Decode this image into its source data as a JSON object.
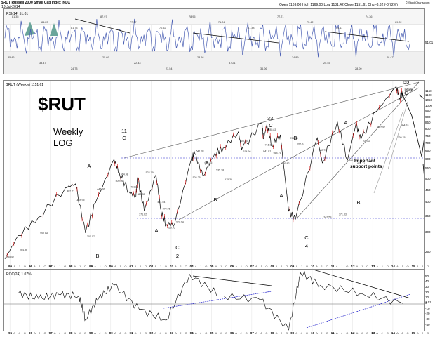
{
  "header": {
    "symbol_line": "$RUT Russell 2000 Small Cap Index INDX",
    "date_line": "18-Jul-2014",
    "quote_line": "Open 1169.00  High 1169.00  Low 1131.42  Close 1151.61  Chg -8.32 (-0.72%)",
    "watermark": "© StockCharts.com"
  },
  "rsi_panel": {
    "label": "RSI(14) 51.01",
    "current": "51.01",
    "peak_labels": [
      "81.35",
      "84.23",
      "81.73",
      "87.97",
      "77.97",
      "70.52",
      "78.95",
      "71.24",
      "67.38",
      "77.71",
      "75.42",
      "74.11",
      "74.36",
      "69.22"
    ],
    "trough_labels": [
      "35.46",
      "33.47",
      "24.73",
      "25.69",
      "22.43",
      "23.54",
      "28.98",
      "37.21",
      "36.06",
      "24.89",
      "25.45",
      "28.00",
      "29.47"
    ]
  },
  "price_panel": {
    "label": "$RUT (Weekly) 1151.61",
    "title": "$RUT",
    "subtitle_1": "Weekly",
    "subtitle_2": "LOG",
    "current_value": "1151.61",
    "support_note_1": "Important",
    "support_note_2": "support points",
    "price_labels": [
      "235.42",
      "264.96",
      "293.84",
      "462.21",
      "401.98",
      "301.07",
      "447.06",
      "509.06",
      "514.98",
      "481.22",
      "425.35",
      "371.62",
      "523.79",
      "417.54",
      "370.96",
      "326.95",
      "327.04",
      "526.25",
      "641.38",
      "606.45",
      "535.38",
      "515.38",
      "705.15",
      "674.66",
      "641.61",
      "716.96",
      "785.83",
      "664.76",
      "569.82",
      "764.38",
      "689.33",
      "682.79",
      "342.59",
      "371.33",
      "586.00",
      "601.71",
      "705.82",
      "847.92",
      "730.76",
      "864.74",
      "1151.61",
      "1208.15"
    ],
    "wave_labels": [
      {
        "text": "11",
        "pos": "top"
      },
      {
        "text": "C",
        "pos": "top"
      },
      {
        "text": "A",
        "pos": "top"
      },
      {
        "text": "B",
        "pos": "bottom"
      },
      {
        "text": "A",
        "pos": "bottom"
      },
      {
        "text": "C",
        "pos": "bottom"
      },
      {
        "text": "2",
        "pos": "bottom"
      },
      {
        "text": "A",
        "pos": "top"
      },
      {
        "text": "B",
        "pos": "bottom"
      },
      {
        "text": "33",
        "pos": "top"
      },
      {
        "text": "C",
        "pos": "top"
      },
      {
        "text": "A",
        "pos": "bottom"
      },
      {
        "text": "B",
        "pos": "top"
      },
      {
        "text": "C",
        "pos": "bottom"
      },
      {
        "text": "4",
        "pos": "bottom"
      },
      {
        "text": "A",
        "pos": "top"
      },
      {
        "text": "B",
        "pos": "bottom"
      },
      {
        "text": "55",
        "pos": "top"
      },
      {
        "text": "C",
        "pos": "top"
      }
    ],
    "y_ticks": [
      "1150",
      "1100",
      "1050",
      "1000",
      "950",
      "900",
      "850",
      "800",
      "750",
      "700",
      "650",
      "600",
      "550",
      "500",
      "450",
      "400",
      "350",
      "300",
      "250"
    ]
  },
  "roc_panel": {
    "label": "ROC(24) 1.07%",
    "current": "1.07",
    "y_ticks": [
      "60",
      "50",
      "40",
      "30",
      "20",
      "10",
      "0",
      "-10",
      "-20",
      "-30",
      "-40",
      "-50"
    ]
  },
  "x_axis": {
    "years": [
      "95",
      "96",
      "97",
      "98",
      "99",
      "00",
      "01",
      "02",
      "03",
      "04",
      "05",
      "06",
      "07",
      "08",
      "09",
      "10",
      "11",
      "12",
      "13",
      "14",
      "15"
    ],
    "month_letters": [
      "A",
      "J",
      "O"
    ]
  },
  "chart_data": {
    "type": "line",
    "title": "$RUT",
    "subtitle": "Weekly LOG",
    "scale": "log",
    "series": [
      {
        "name": "$RUT (Weekly)",
        "x": [
          "1994-10",
          "1995-06",
          "1996-06",
          "1997-10",
          "1998-04",
          "1998-10",
          "1999-04",
          "2000-03",
          "2000-06",
          "2000-12",
          "2001-04",
          "2001-05",
          "2001-09",
          "2002-04",
          "2002-07",
          "2002-10",
          "2003-03",
          "2004-01",
          "2004-03",
          "2004-08",
          "2005-03",
          "2005-08",
          "2006-05",
          "2006-07",
          "2007-07",
          "2007-08",
          "2007-10",
          "2008-01",
          "2008-06",
          "2008-11",
          "2009-03",
          "2010-04",
          "2010-07",
          "2011-04",
          "2011-10",
          "2012-03",
          "2012-06",
          "2013-03",
          "2014-03",
          "2014-05",
          "2014-07"
        ],
        "values": [
          235.42,
          293.84,
          350,
          462.21,
          480,
          301.07,
          401.98,
          606.45,
          535.38,
          445.06,
          425.35,
          509.06,
          371.62,
          523.79,
          370.96,
          326.95,
          327.04,
          606.45,
          641.38,
          515.38,
          641.61,
          674.66,
          785.83,
          664.76,
          856.48,
          734.52,
          845.0,
          689.33,
          764.38,
          371.33,
          342.59,
          741.92,
          586.0,
          865.29,
          601.71,
          847.92,
          730.76,
          950,
          1208.15,
          1082,
          1151.61
        ]
      },
      {
        "name": "ROC(24)",
        "x": [
          "1995",
          "1996",
          "1997",
          "1998-06",
          "1998-10",
          "1999",
          "2000-03",
          "2001",
          "2002-10",
          "2003-12",
          "2005",
          "2007",
          "2008-11",
          "2009-06",
          "2010",
          "2012",
          "2014-07"
        ],
        "values": [
          20,
          10,
          18,
          15,
          -28,
          12,
          35,
          -10,
          -30,
          55,
          15,
          8,
          -48,
          58,
          35,
          20,
          1.07
        ]
      }
    ],
    "yticks": [
      "1150",
      "1100",
      "1050",
      "1000",
      "950",
      "900",
      "850",
      "800",
      "750",
      "700",
      "650",
      "600",
      "550",
      "500",
      "450",
      "400",
      "350",
      "300",
      "250"
    ],
    "xticks": [
      "95",
      "96",
      "97",
      "98",
      "99",
      "00",
      "01",
      "02",
      "03",
      "04",
      "05",
      "06",
      "07",
      "08",
      "09",
      "10",
      "11",
      "12",
      "13",
      "14",
      "15"
    ],
    "grid": true,
    "legend": "top-left"
  }
}
